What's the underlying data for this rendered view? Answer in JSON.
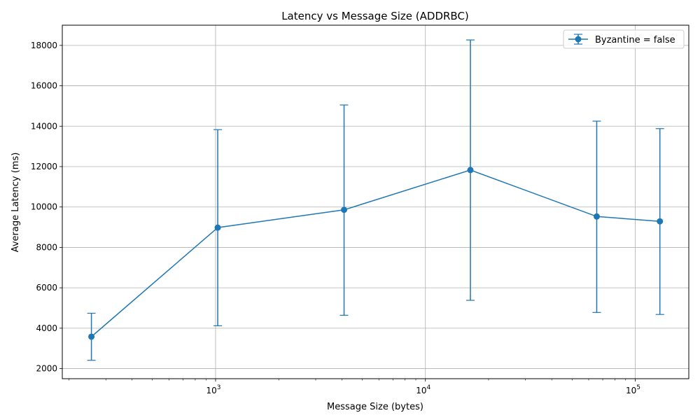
{
  "chart_data": {
    "type": "line",
    "title": "Latency vs Message Size (ADDRBC)",
    "xlabel": "Message Size (bytes)",
    "ylabel": "Average Latency (ms)",
    "xscale": "log",
    "xlim": [
      186,
      180000
    ],
    "ylim": [
      1500,
      19000
    ],
    "x_ticks": [
      {
        "value": 1000,
        "base": "10",
        "exp": "3"
      },
      {
        "value": 10000,
        "base": "10",
        "exp": "4"
      },
      {
        "value": 100000,
        "base": "10",
        "exp": "5"
      }
    ],
    "y_ticks": [
      2000,
      4000,
      6000,
      8000,
      10000,
      12000,
      14000,
      16000,
      18000
    ],
    "grid": true,
    "legend_position": "top-right",
    "series": [
      {
        "name": "Byzantine = false",
        "color": "#1f77b4",
        "x": [
          256,
          1024,
          4096,
          16384,
          65536,
          131072
        ],
        "y": [
          3580,
          8980,
          9860,
          11830,
          9530,
          9290
        ],
        "yerr_low": [
          2410,
          4120,
          4640,
          5380,
          4780,
          4680
        ],
        "yerr_high": [
          4740,
          13830,
          15050,
          18270,
          14250,
          13880
        ]
      }
    ]
  }
}
